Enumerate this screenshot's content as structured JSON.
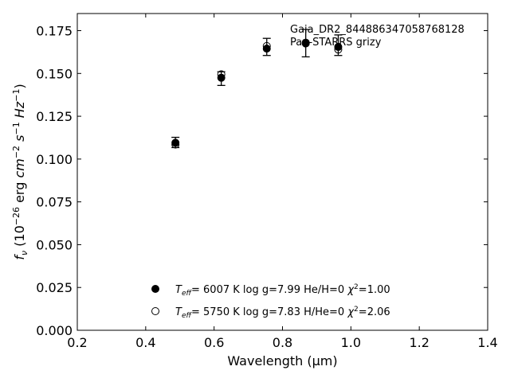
{
  "chart_data": {
    "type": "scatter",
    "annotation_lines": [
      "Gaia_DR2_844886347058768128",
      "Pan-STARRS grizy"
    ],
    "xlabel": "Wavelength (μm)",
    "xlim": [
      0.2,
      1.4
    ],
    "ylim": [
      0.0,
      0.185
    ],
    "xticks": [
      0.2,
      0.4,
      0.6,
      0.8,
      1.0,
      1.2,
      1.4
    ],
    "yticks": [
      0.0,
      0.025,
      0.05,
      0.075,
      0.1,
      0.125,
      0.15,
      0.175
    ],
    "xtick_labels": [
      "0.2",
      "0.4",
      "0.6",
      "0.8",
      "1.0",
      "1.2",
      "1.4"
    ],
    "ytick_labels": [
      "0.000",
      "0.025",
      "0.050",
      "0.075",
      "0.100",
      "0.125",
      "0.150",
      "0.175"
    ],
    "grid": false,
    "legend_position": "bottom-center",
    "series": [
      {
        "legend": {
          "teff": "6007",
          "logg": "7.99",
          "comp": "He/H=0",
          "chi2": "1.00"
        },
        "marker": "filled-circle",
        "x": [
          0.487,
          0.621,
          0.754,
          0.868,
          0.963
        ],
        "y": [
          0.1095,
          0.1475,
          0.1645,
          0.1675,
          0.1655
        ]
      },
      {
        "legend": {
          "teff": "5750",
          "logg": "7.83",
          "comp": "H/He=0",
          "chi2": "2.06"
        },
        "marker": "open-circle",
        "x": [
          0.487,
          0.621,
          0.754,
          0.868,
          0.963
        ],
        "y": [
          0.1085,
          0.1495,
          0.166,
          0.168,
          0.164
        ]
      }
    ],
    "observed": {
      "x": [
        0.487,
        0.621,
        0.754,
        0.868,
        0.963
      ],
      "y": [
        0.1097,
        0.147,
        0.1655,
        0.1677,
        0.1665
      ],
      "yerr": [
        0.003,
        0.004,
        0.005,
        0.008,
        0.006
      ]
    }
  }
}
